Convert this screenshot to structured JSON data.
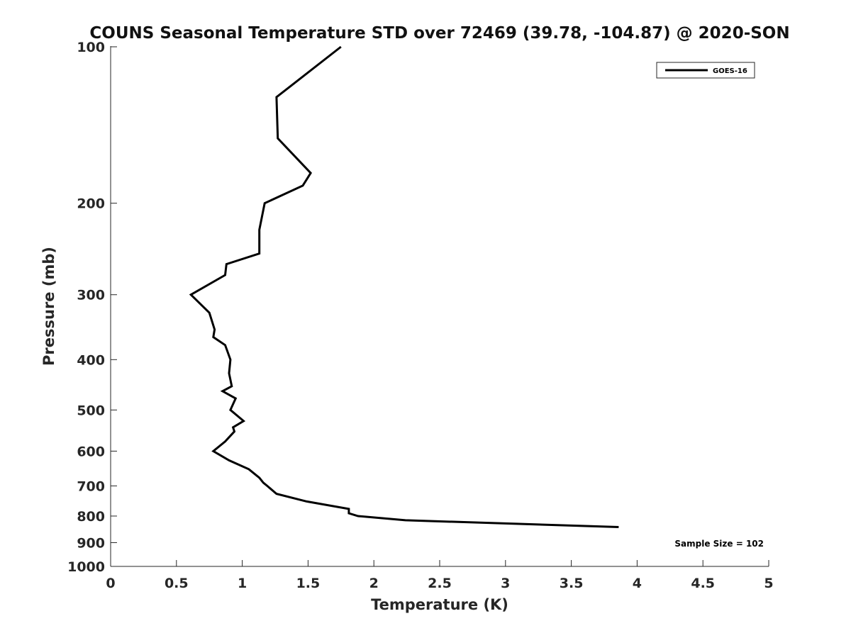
{
  "chart_data": {
    "type": "line",
    "title": "COUNS Seasonal Temperature STD over 72469 (39.78, -104.87) @ 2020-SON",
    "xlabel": "Temperature (K)",
    "ylabel": "Pressure (mb)",
    "xlim": [
      0,
      5
    ],
    "ylim": [
      100,
      1000
    ],
    "y_scale": "log",
    "y_reversed": true,
    "x_ticks": [
      "0",
      "0.5",
      "1",
      "1.5",
      "2",
      "2.5",
      "3",
      "3.5",
      "4",
      "4.5",
      "5"
    ],
    "x_tick_values": [
      0,
      0.5,
      1,
      1.5,
      2,
      2.5,
      3,
      3.5,
      4,
      4.5,
      5
    ],
    "y_ticks": [
      "100",
      "200",
      "300",
      "400",
      "500",
      "600",
      "700",
      "800",
      "900",
      "1000"
    ],
    "y_tick_values": [
      100,
      200,
      300,
      400,
      500,
      600,
      700,
      800,
      900,
      1000
    ],
    "grid": false,
    "legend_position": "top-right",
    "annotation": "Sample Size = 102",
    "series": [
      {
        "name": "GOES-16",
        "color": "#000000",
        "points": [
          [
            1.75,
            100
          ],
          [
            1.26,
            125
          ],
          [
            1.27,
            150
          ],
          [
            1.52,
            175
          ],
          [
            1.46,
            185
          ],
          [
            1.17,
            200
          ],
          [
            1.13,
            225
          ],
          [
            1.13,
            250
          ],
          [
            0.88,
            262
          ],
          [
            0.87,
            275
          ],
          [
            0.61,
            300
          ],
          [
            0.75,
            325
          ],
          [
            0.79,
            350
          ],
          [
            0.78,
            362
          ],
          [
            0.87,
            375
          ],
          [
            0.91,
            400
          ],
          [
            0.9,
            425
          ],
          [
            0.92,
            450
          ],
          [
            0.85,
            460
          ],
          [
            0.95,
            475
          ],
          [
            0.91,
            500
          ],
          [
            1.01,
            525
          ],
          [
            0.93,
            540
          ],
          [
            0.94,
            550
          ],
          [
            0.87,
            575
          ],
          [
            0.78,
            600
          ],
          [
            0.9,
            625
          ],
          [
            1.05,
            650
          ],
          [
            1.13,
            675
          ],
          [
            1.16,
            690
          ],
          [
            1.19,
            700
          ],
          [
            1.26,
            725
          ],
          [
            1.49,
            750
          ],
          [
            1.81,
            775
          ],
          [
            1.81,
            790
          ],
          [
            1.88,
            800
          ],
          [
            2.24,
            815
          ],
          [
            3.86,
            840
          ]
        ]
      }
    ]
  }
}
